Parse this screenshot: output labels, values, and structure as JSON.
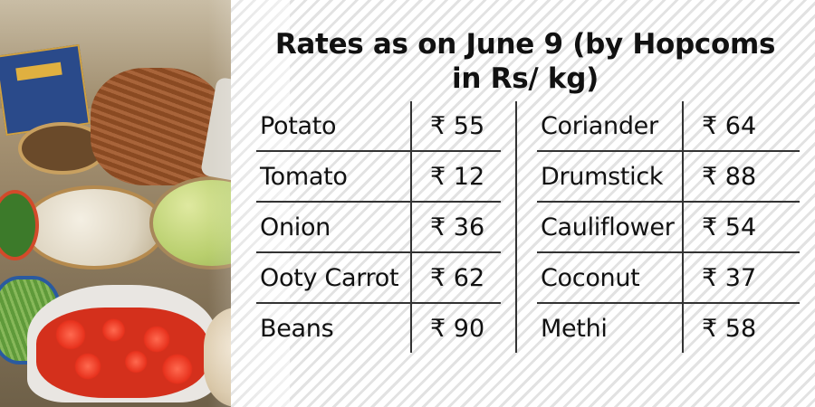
{
  "title": "Rates as on June 9 (by Hopcoms in Rs/ kg)",
  "rates_left": [
    {
      "item": "Potato",
      "rate": "₹ 55"
    },
    {
      "item": "Tomato",
      "rate": "₹ 12"
    },
    {
      "item": "Onion",
      "rate": "₹ 36"
    },
    {
      "item": "Ooty Carrot",
      "rate": "₹ 62"
    },
    {
      "item": "Beans",
      "rate": "₹ 90"
    }
  ],
  "rates_right": [
    {
      "item": "Coriander",
      "rate": "₹ 64"
    },
    {
      "item": "Drumstick",
      "rate": "₹ 88"
    },
    {
      "item": "Cauliflower",
      "rate": "₹ 54"
    },
    {
      "item": "Coconut",
      "rate": "₹ 37"
    },
    {
      "item": "Methi",
      "rate": "₹ 58"
    }
  ]
}
